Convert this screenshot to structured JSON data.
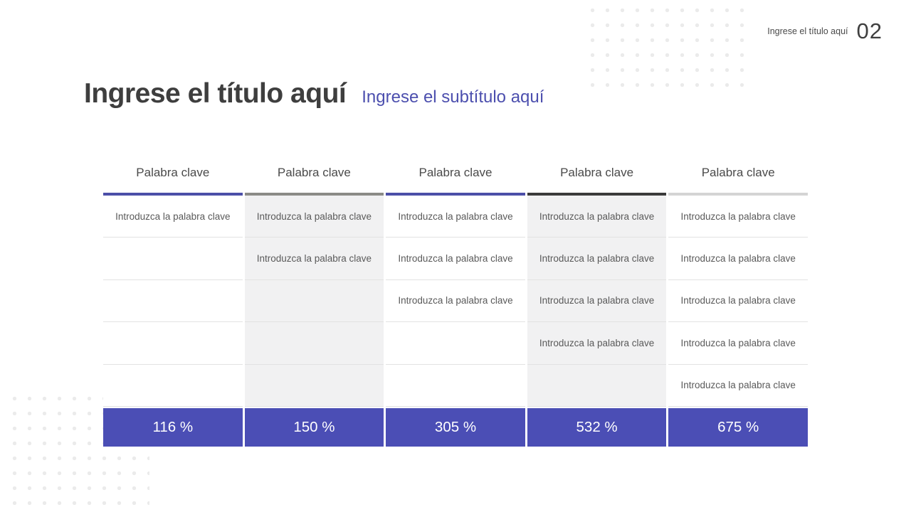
{
  "header": {
    "label": "Ingrese el título aquí",
    "page_number": "02"
  },
  "title": {
    "main": "Ingrese el título aquí",
    "subtitle": "Ingrese el subtítulo aquí"
  },
  "table": {
    "total_row_color": "#4b4eb5",
    "columns": [
      {
        "header": "Palabra clave",
        "accent_color": "#4c4fa8",
        "body_bg": "#ffffff",
        "cells": [
          "Introduzca la palabra clave",
          "",
          "",
          "",
          ""
        ],
        "total": "116 %"
      },
      {
        "header": "Palabra clave",
        "accent_color": "#8b8b86",
        "body_bg": "#f1f1f2",
        "cells": [
          "Introduzca la palabra clave",
          "Introduzca la palabra clave",
          "",
          "",
          ""
        ],
        "total": "150 %"
      },
      {
        "header": "Palabra clave",
        "accent_color": "#4c4fa8",
        "body_bg": "#ffffff",
        "cells": [
          "Introduzca la palabra clave",
          "Introduzca la palabra clave",
          "Introduzca la palabra clave",
          "",
          ""
        ],
        "total": "305 %"
      },
      {
        "header": "Palabra clave",
        "accent_color": "#3b3b3b",
        "body_bg": "#f1f1f2",
        "cells": [
          "Introduzca la palabra clave",
          "Introduzca la palabra clave",
          "Introduzca la palabra clave",
          "Introduzca la palabra clave",
          ""
        ],
        "total": "532 %"
      },
      {
        "header": "Palabra clave",
        "accent_color": "#d4d4d4",
        "body_bg": "#ffffff",
        "cells": [
          "Introduzca la palabra clave",
          "Introduzca la palabra clave",
          "Introduzca la palabra clave",
          "Introduzca la palabra clave",
          "Introduzca la palabra clave"
        ],
        "total": "675 %"
      }
    ]
  },
  "colors": {
    "accent_purple": "#4b4eb5",
    "bar_purple": "#4c4fa8",
    "bar_gray": "#8b8b86",
    "bar_dark": "#3b3b3b",
    "bar_light": "#d4d4d4",
    "shaded_column_bg": "#f1f1f2",
    "row_divider": "#e2e2e2",
    "dot_pattern": "#ebebeb",
    "title_text": "#3e3e3e",
    "subtitle_text": "#4c4fae",
    "body_text": "#5a5a5a"
  }
}
